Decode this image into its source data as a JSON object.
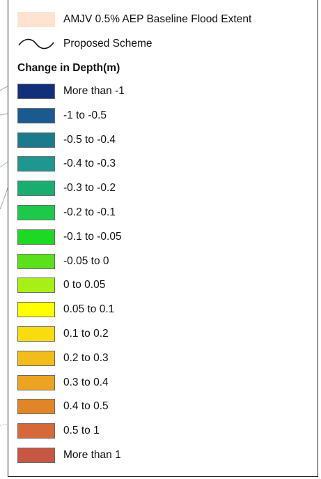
{
  "legend": {
    "baseline": {
      "label": "AMJV 0.5% AEP Baseline Flood Extent",
      "color": "#fde3d0"
    },
    "scheme": {
      "label": "Proposed Scheme"
    },
    "heading": "Change in Depth(m)",
    "classes": [
      {
        "label": "More than -1",
        "color": "#12307a"
      },
      {
        "label": "-1 to -0.5",
        "color": "#1a5a8e"
      },
      {
        "label": "-0.5 to -0.4",
        "color": "#1b7a8c"
      },
      {
        "label": "-0.4 to -0.3",
        "color": "#1f9690"
      },
      {
        "label": "-0.3 to -0.2",
        "color": "#1aad70"
      },
      {
        "label": "-0.2 to -0.1",
        "color": "#1ec84a"
      },
      {
        "label": "-0.1 to -0.05",
        "color": "#1fd825"
      },
      {
        "label": "-0.05 to 0",
        "color": "#5ce01c"
      },
      {
        "label": "0 to 0.05",
        "color": "#a8ef18"
      },
      {
        "label": "0.05 to 0.1",
        "color": "#ffff00"
      },
      {
        "label": "0.1 to 0.2",
        "color": "#f9dc10"
      },
      {
        "label": "0.2 to 0.3",
        "color": "#f2bd1b"
      },
      {
        "label": "0.3 to 0.4",
        "color": "#eda322"
      },
      {
        "label": "0.4 to 0.5",
        "color": "#e08629"
      },
      {
        "label": "0.5 to 1",
        "color": "#d6693a"
      },
      {
        "label": "More than 1",
        "color": "#c65744"
      }
    ]
  }
}
